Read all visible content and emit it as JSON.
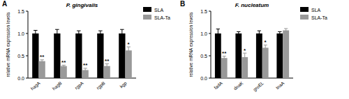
{
  "chart_data": [
    {
      "type": "bar",
      "label": "A",
      "title": "P. gingivalis",
      "y_label": "relative mRNA expression levels",
      "categories": [
        "hagA",
        "hagB",
        "rgpA",
        "rgpB",
        "kgp"
      ],
      "series": [
        {
          "name": "SLA",
          "color": "#000000",
          "values": [
            1.0,
            1.0,
            1.0,
            1.0,
            1.0
          ],
          "errors": [
            0.07,
            0.09,
            0.06,
            0.06,
            0.09
          ]
        },
        {
          "name": "SLA-Ta",
          "color": "#999999",
          "values": [
            0.38,
            0.27,
            0.18,
            0.27,
            0.62
          ],
          "errors": [
            0.03,
            0.02,
            0.04,
            0.05,
            0.08
          ],
          "significance": [
            "**",
            "**",
            "**",
            "**",
            "*"
          ]
        }
      ],
      "ylim": [
        0,
        1.5
      ],
      "yticks": [
        {
          "value": 0,
          "label": "0.0"
        },
        {
          "value": 0.5,
          "label": "0.5"
        },
        {
          "value": 1,
          "label": "1.0"
        },
        {
          "value": 1.5,
          "label": "1.5"
        }
      ],
      "legend": "right"
    },
    {
      "type": "bar",
      "label": "B",
      "title": "F. nucleatum",
      "y_label": "relative mRNA expression levels",
      "categories": [
        "fadA",
        "dnaK",
        "groEL",
        "tnaA"
      ],
      "series": [
        {
          "name": "SLA",
          "color": "#000000",
          "values": [
            1.0,
            1.0,
            1.0,
            1.0
          ],
          "errors": [
            0.1,
            0.04,
            0.06,
            0.04
          ]
        },
        {
          "name": "SLA-Ta",
          "color": "#999999",
          "values": [
            0.45,
            0.47,
            0.68,
            1.07
          ],
          "errors": [
            0.04,
            0.09,
            0.06,
            0.04
          ],
          "significance": [
            "**",
            "*",
            "*",
            null
          ]
        }
      ],
      "ylim": [
        0,
        1.5
      ],
      "yticks": [
        {
          "value": 0,
          "label": "0.0"
        },
        {
          "value": 0.5,
          "label": "0.5"
        },
        {
          "value": 1,
          "label": "1.0"
        },
        {
          "value": 1.5,
          "label": "1.5"
        }
      ],
      "legend": "right"
    }
  ]
}
